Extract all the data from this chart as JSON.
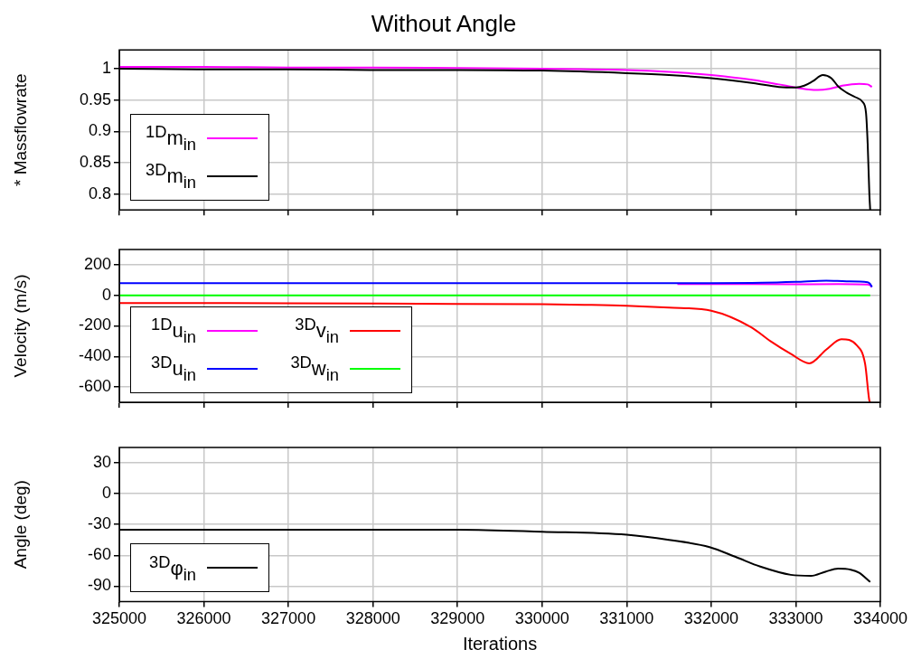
{
  "chart_data": [
    {
      "type": "line",
      "title": "Without Angle",
      "ylabel": "* Massflowrate",
      "xlim": [
        325000,
        334000
      ],
      "xticks": [
        325000,
        326000,
        327000,
        328000,
        329000,
        330000,
        331000,
        332000,
        333000,
        334000
      ],
      "ylim": [
        0.775,
        1.03
      ],
      "yticks": [
        {
          "value": 0.8,
          "label": "0.8"
        },
        0.85,
        {
          "value": 0.9,
          "label": "0.9"
        },
        0.95,
        1
      ],
      "tick_labels": "y",
      "grid": true,
      "legend": "bottom left",
      "series": [
        {
          "name": "$^{1D}$m$_{in}$",
          "color": "#ff00ff",
          "x": [
            325000,
            326000,
            327000,
            328000,
            329000,
            330000,
            331000,
            331500,
            332000,
            332500,
            332800,
            333000,
            333150,
            333260,
            333400,
            333550,
            333750,
            333850,
            333900
          ],
          "values": [
            1.003,
            1.003,
            1.002,
            1.002,
            1.001,
            1.0,
            0.998,
            0.995,
            0.99,
            0.982,
            0.975,
            0.97,
            0.967,
            0.966,
            0.968,
            0.973,
            0.976,
            0.975,
            0.971
          ]
        },
        {
          "name": "$^{3D}$m$_{in}$",
          "color": "#000000",
          "x": [
            325000,
            326000,
            327000,
            328000,
            329000,
            330000,
            331000,
            331500,
            332000,
            332500,
            332800,
            333000,
            333100,
            333200,
            333320,
            333420,
            333500,
            333600,
            333700,
            333790,
            333830,
            333850,
            333870,
            333880
          ],
          "values": [
            1.0,
            0.999,
            0.999,
            0.998,
            0.998,
            0.997,
            0.993,
            0.99,
            0.985,
            0.977,
            0.971,
            0.97,
            0.973,
            0.98,
            0.99,
            0.985,
            0.972,
            0.962,
            0.955,
            0.947,
            0.93,
            0.88,
            0.8,
            0.775
          ]
        }
      ]
    },
    {
      "type": "line",
      "ylabel": "Velocity (m/s)",
      "xlim": [
        325000,
        334000
      ],
      "xticks": [
        325000,
        326000,
        327000,
        328000,
        329000,
        330000,
        331000,
        332000,
        333000,
        334000
      ],
      "ylim": [
        -700,
        300
      ],
      "yticks": [
        -600,
        -400,
        -200,
        0,
        200
      ],
      "tick_labels": "y",
      "grid": true,
      "legend": "bottom left",
      "series": [
        {
          "name": "$^{1D}$u$_{in}$",
          "color": "#ff00ff",
          "x": [
            331600,
            332000,
            333000,
            333500,
            333850,
            333880,
            333900
          ],
          "values": [
            74,
            74,
            72,
            73,
            70,
            65,
            55
          ]
        },
        {
          "name": "$^{3D}$u$_{in}$",
          "color": "#0000ff",
          "x": [
            325000,
            328000,
            331000,
            332000,
            332600,
            333000,
            333360,
            333600,
            333850,
            333880,
            333900
          ],
          "values": [
            80,
            80,
            80,
            80,
            82,
            88,
            96,
            92,
            86,
            75,
            55
          ]
        },
        {
          "name": "$^{3D}$v$_{in}$",
          "color": "#ff0000",
          "x": [
            325000,
            327000,
            329000,
            330000,
            330500,
            331000,
            331500,
            332000,
            332470,
            332700,
            332940,
            333160,
            333360,
            333540,
            333720,
            333820,
            333870,
            333880
          ],
          "values": [
            -50,
            -52,
            -56,
            -58,
            -62,
            -68,
            -80,
            -101,
            -208,
            -300,
            -383,
            -445,
            -355,
            -287,
            -327,
            -450,
            -690,
            -700
          ]
        },
        {
          "name": "$^{3D}$w$_{in}$",
          "color": "#00ff00",
          "x": [
            325000,
            333880
          ],
          "values": [
            0,
            0
          ]
        }
      ]
    },
    {
      "type": "line",
      "ylabel": "Angle (deg)",
      "xlabel": "Iterations",
      "xlim": [
        325000,
        334000
      ],
      "xticks": [
        325000,
        326000,
        327000,
        328000,
        329000,
        330000,
        331000,
        332000,
        333000,
        334000
      ],
      "ylim": [
        -105,
        45
      ],
      "yticks": [
        -90,
        -60,
        -30,
        0,
        30
      ],
      "grid": true,
      "legend": "bottom left",
      "series": [
        {
          "name": "$^{3D}$φ$_{in}$",
          "color": "#000000",
          "x": [
            325000,
            327000,
            329000,
            330000,
            331000,
            331500,
            331980,
            332300,
            332580,
            332940,
            333180,
            333350,
            333500,
            333650,
            333750,
            333880
          ],
          "values": [
            -35,
            -35,
            -35,
            -37,
            -40,
            -45,
            -52,
            -62,
            -71,
            -79,
            -80,
            -76,
            -73,
            -74,
            -77,
            -86
          ]
        }
      ]
    }
  ]
}
